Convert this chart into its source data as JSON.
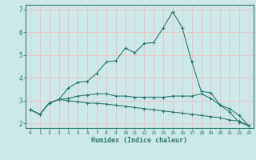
{
  "xlabel": "Humidex (Indice chaleur)",
  "x": [
    0,
    1,
    2,
    3,
    4,
    5,
    6,
    7,
    8,
    9,
    10,
    11,
    12,
    13,
    14,
    15,
    16,
    17,
    18,
    19,
    20,
    21,
    22,
    23
  ],
  "line1": [
    2.6,
    2.4,
    2.9,
    3.05,
    3.55,
    3.8,
    3.85,
    4.2,
    4.7,
    4.75,
    5.3,
    5.1,
    5.5,
    5.55,
    6.2,
    6.9,
    6.2,
    4.7,
    3.4,
    3.35,
    2.8,
    2.5,
    2.05,
    1.9
  ],
  "line2": [
    2.6,
    2.4,
    2.9,
    3.05,
    3.1,
    3.2,
    3.25,
    3.3,
    3.3,
    3.2,
    3.2,
    3.15,
    3.15,
    3.15,
    3.15,
    3.2,
    3.2,
    3.2,
    3.3,
    3.1,
    2.8,
    2.65,
    2.35,
    1.9
  ],
  "line3": [
    2.6,
    2.4,
    2.9,
    3.05,
    3.0,
    2.95,
    2.9,
    2.88,
    2.85,
    2.8,
    2.75,
    2.7,
    2.65,
    2.6,
    2.55,
    2.5,
    2.45,
    2.4,
    2.35,
    2.3,
    2.25,
    2.15,
    2.1,
    1.9
  ],
  "line_color": "#2d7a70",
  "bg_color": "#cce8e8",
  "grid_color": "#e8c8c8",
  "ylim": [
    1.8,
    7.2
  ],
  "xlim": [
    -0.5,
    23.5
  ],
  "yticks": [
    2,
    3,
    4,
    5,
    6,
    7
  ],
  "xticks": [
    0,
    1,
    2,
    3,
    4,
    5,
    6,
    7,
    8,
    9,
    10,
    11,
    12,
    13,
    14,
    15,
    16,
    17,
    18,
    19,
    20,
    21,
    22,
    23
  ]
}
